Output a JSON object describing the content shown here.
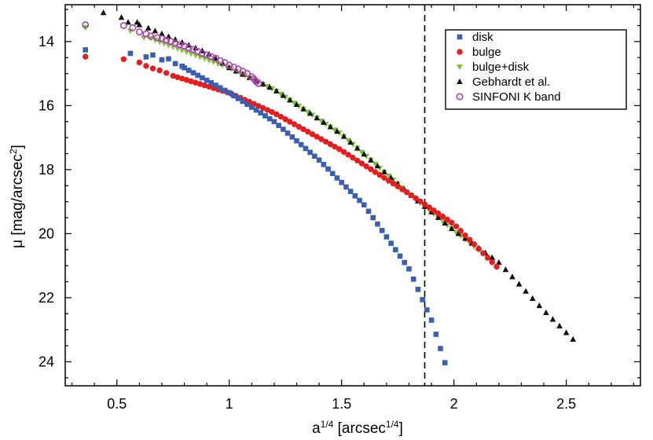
{
  "chart_data": {
    "type": "scatter",
    "xlabel": {
      "base": "a",
      "sup": "1/4",
      "unit_pre": " [arcsec",
      "unit_sup": "1/4",
      "unit_post": "]"
    },
    "ylabel": {
      "base": "μ  [mag/arcsec",
      "sup": "2",
      "post": "]"
    },
    "xlim": [
      0.27,
      2.83
    ],
    "ylim": [
      24.75,
      12.85
    ],
    "y_inverted": true,
    "x_ticks": [
      0.5,
      1,
      1.5,
      2,
      2.5
    ],
    "x_tick_labels": [
      "0.5",
      "1",
      "1.5",
      "2",
      "2.5"
    ],
    "y_ticks": [
      14,
      16,
      18,
      20,
      22,
      24
    ],
    "y_tick_labels": [
      "14",
      "16",
      "18",
      "20",
      "22",
      "24"
    ],
    "grid": false,
    "legend_position": "top-right",
    "annotations": [
      {
        "type": "vertical-dashed-line",
        "x": 1.87
      }
    ],
    "series": [
      {
        "name": "disk",
        "marker": "square",
        "color": "#3a5fb0",
        "points": [
          [
            0.36,
            14.26
          ],
          [
            0.56,
            14.37
          ],
          [
            0.63,
            14.48
          ],
          [
            0.66,
            14.42
          ],
          [
            0.7,
            14.57
          ],
          [
            0.73,
            14.54
          ],
          [
            0.76,
            14.69
          ],
          [
            0.79,
            14.77
          ]
        ],
        "curve": {
          "from": 0.8,
          "to": 1.97,
          "step": 0.02,
          "anchors": [
            [
              0.8,
              14.82
            ],
            [
              1.0,
              15.6
            ],
            [
              1.2,
              16.5
            ],
            [
              1.4,
              17.7
            ],
            [
              1.6,
              19.1
            ],
            [
              1.8,
              21.1
            ],
            [
              1.9,
              22.7
            ],
            [
              1.97,
              24.25
            ]
          ]
        }
      },
      {
        "name": "bulge",
        "marker": "circle",
        "color": "#e41e1e",
        "points": [
          [
            0.36,
            14.47
          ],
          [
            0.53,
            14.55
          ],
          [
            0.6,
            14.65
          ],
          [
            0.63,
            14.76
          ],
          [
            0.66,
            14.84
          ],
          [
            0.69,
            14.9
          ],
          [
            0.72,
            14.98
          ]
        ],
        "curve": {
          "from": 0.75,
          "to": 2.2,
          "step": 0.02,
          "anchors": [
            [
              0.75,
              15.07
            ],
            [
              1.0,
              15.6
            ],
            [
              1.2,
              16.23
            ],
            [
              1.5,
              17.4
            ],
            [
              1.8,
              18.75
            ],
            [
              2.0,
              19.7
            ],
            [
              2.2,
              21.1
            ]
          ]
        }
      },
      {
        "name": "bulge+disk",
        "marker": "triangle-down",
        "color": "#7ec43a",
        "points": [
          [
            0.36,
            13.56
          ],
          [
            0.56,
            13.67
          ],
          [
            0.62,
            13.88
          ]
        ],
        "curve": {
          "from": 0.65,
          "to": 2.18,
          "step": 0.02,
          "anchors": [
            [
              0.65,
              13.9
            ],
            [
              0.8,
              14.3
            ],
            [
              1.0,
              14.82
            ],
            [
              1.2,
              15.5
            ],
            [
              1.5,
              16.9
            ],
            [
              1.8,
              18.75
            ],
            [
              2.0,
              19.9
            ],
            [
              2.18,
              20.9
            ]
          ]
        }
      },
      {
        "name": "Gebhardt et al.",
        "marker": "triangle-up",
        "color": "#111111",
        "points": [
          [
            0.44,
            13.1
          ],
          [
            0.52,
            13.25
          ],
          [
            0.55,
            13.4
          ],
          [
            0.59,
            13.4
          ],
          [
            0.6,
            13.48
          ],
          [
            0.64,
            13.58
          ],
          [
            0.67,
            13.67
          ],
          [
            0.7,
            13.76
          ]
        ],
        "curve": {
          "from": 0.73,
          "to": 2.53,
          "step": 0.03,
          "anchors": [
            [
              0.73,
              13.85
            ],
            [
              0.9,
              14.35
            ],
            [
              1.0,
              14.82
            ],
            [
              1.2,
              15.5
            ],
            [
              1.5,
              16.9
            ],
            [
              1.8,
              18.75
            ],
            [
              2.0,
              19.9
            ],
            [
              2.2,
              20.9
            ],
            [
              2.4,
              22.4
            ],
            [
              2.53,
              23.3
            ]
          ]
        }
      },
      {
        "name": "SINFONI K band",
        "marker": "open-circle",
        "color": "#b042b4",
        "points": [
          [
            0.36,
            13.48
          ],
          [
            0.53,
            13.5
          ],
          [
            0.57,
            13.57
          ],
          [
            0.6,
            13.7
          ],
          [
            0.63,
            13.76
          ],
          [
            0.65,
            13.83
          ],
          [
            0.68,
            13.88
          ],
          [
            0.7,
            13.91
          ],
          [
            0.72,
            13.96
          ],
          [
            0.74,
            14.0
          ],
          [
            0.76,
            14.05
          ],
          [
            0.78,
            14.1
          ],
          [
            0.8,
            14.14
          ],
          [
            0.82,
            14.2
          ],
          [
            0.84,
            14.25
          ],
          [
            0.86,
            14.31
          ],
          [
            0.88,
            14.37
          ],
          [
            0.9,
            14.42
          ],
          [
            0.92,
            14.47
          ],
          [
            0.94,
            14.52
          ],
          [
            0.96,
            14.6
          ],
          [
            0.98,
            14.66
          ],
          [
            1.0,
            14.74
          ],
          [
            1.02,
            14.8
          ],
          [
            1.04,
            14.86
          ],
          [
            1.06,
            14.93
          ],
          [
            1.08,
            15.0
          ],
          [
            1.1,
            15.1
          ],
          [
            1.11,
            15.17
          ],
          [
            1.12,
            15.25
          ],
          [
            1.13,
            15.31
          ]
        ]
      }
    ]
  }
}
